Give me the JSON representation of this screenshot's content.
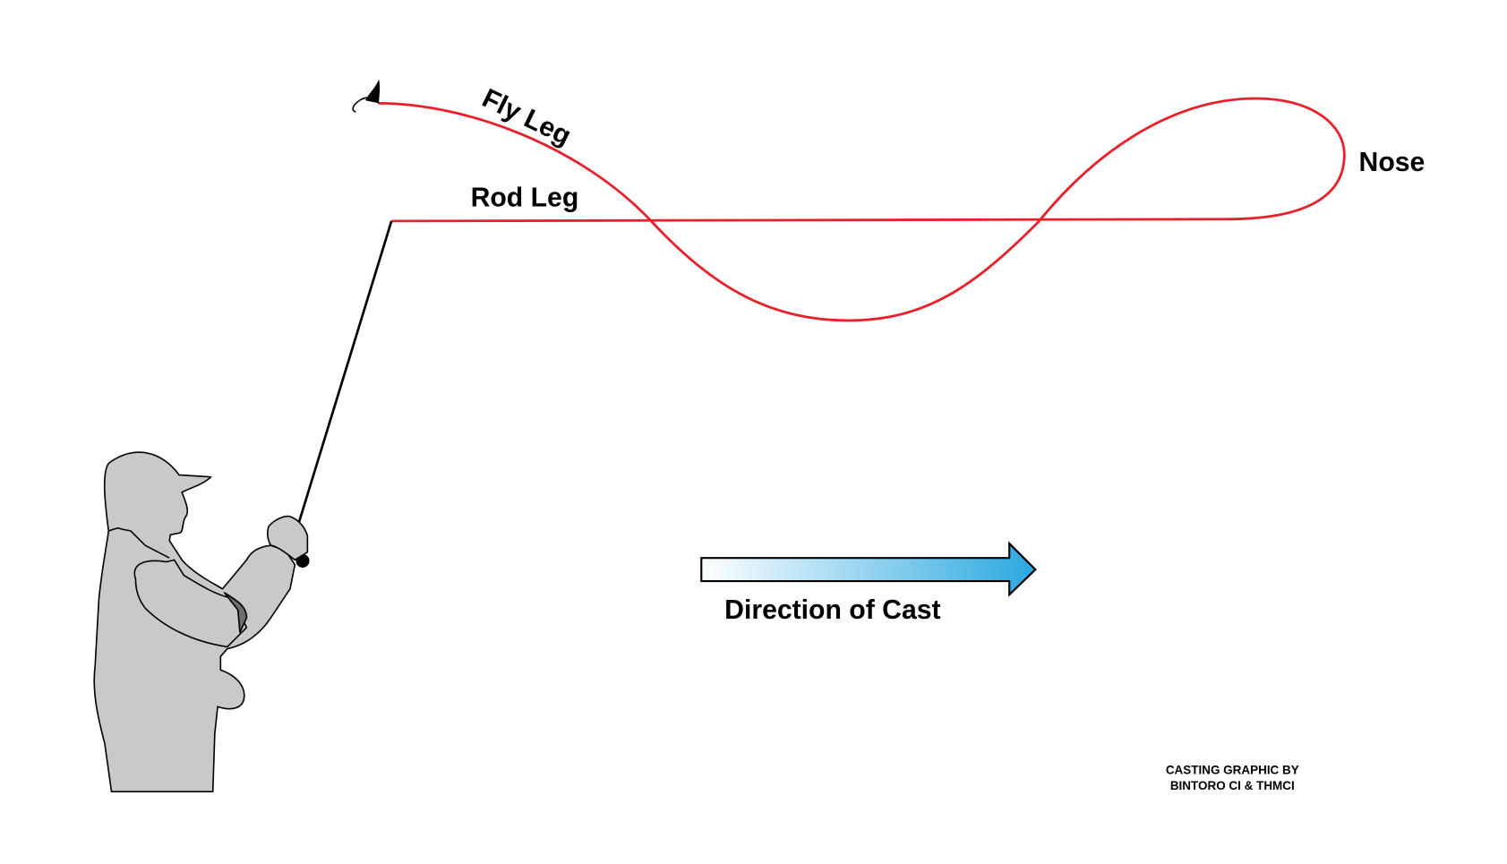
{
  "labels": {
    "fly_leg": "Fly Leg",
    "rod_leg": "Rod Leg",
    "nose": "Nose",
    "direction": "Direction of Cast"
  },
  "credit": {
    "line1": "CASTING GRAPHIC BY",
    "line2": "BINTORO CI & THMCI"
  },
  "colors": {
    "line": "#e8202a",
    "figure": "#c8c9cb",
    "arrow_start": "#ffffff",
    "arrow_end": "#29a8e0"
  }
}
